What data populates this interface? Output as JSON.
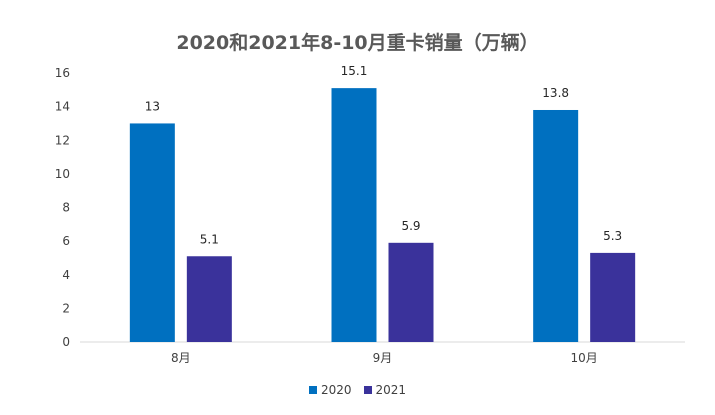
{
  "chart_data": {
    "type": "bar",
    "title": "2020和2021年8-10月重卡销量（万辆）",
    "categories": [
      "8月",
      "9月",
      "10月"
    ],
    "series": [
      {
        "name": "2020",
        "values": [
          13,
          15.1,
          13.8
        ],
        "color": "#0070C0"
      },
      {
        "name": "2021",
        "values": [
          5.1,
          5.9,
          5.3
        ],
        "color": "#3A329B"
      }
    ],
    "ylim": [
      0,
      16
    ],
    "yticks": [
      0,
      2,
      4,
      6,
      8,
      10,
      12,
      14,
      16
    ],
    "grid": false,
    "legend_position": "bottom"
  }
}
